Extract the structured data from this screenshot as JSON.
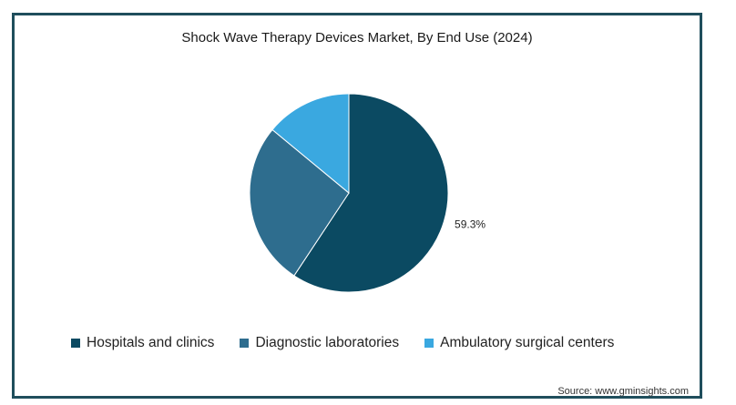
{
  "chart_data": {
    "type": "pie",
    "title": "Shock Wave Therapy Devices Market, By End Use (2024)",
    "categories": [
      "Hospitals and clinics",
      "Diagnostic laboratories",
      "Ambulatory surgical centers"
    ],
    "values": [
      59.3,
      26.7,
      14.0
    ],
    "colors": [
      "#0b4a62",
      "#2e6d8e",
      "#3aa8e0"
    ],
    "data_labels": [
      {
        "category": "Hospitals and clinics",
        "text": "59.3%"
      }
    ],
    "legend_position": "bottom"
  },
  "source": "Source: www.gminsights.com"
}
